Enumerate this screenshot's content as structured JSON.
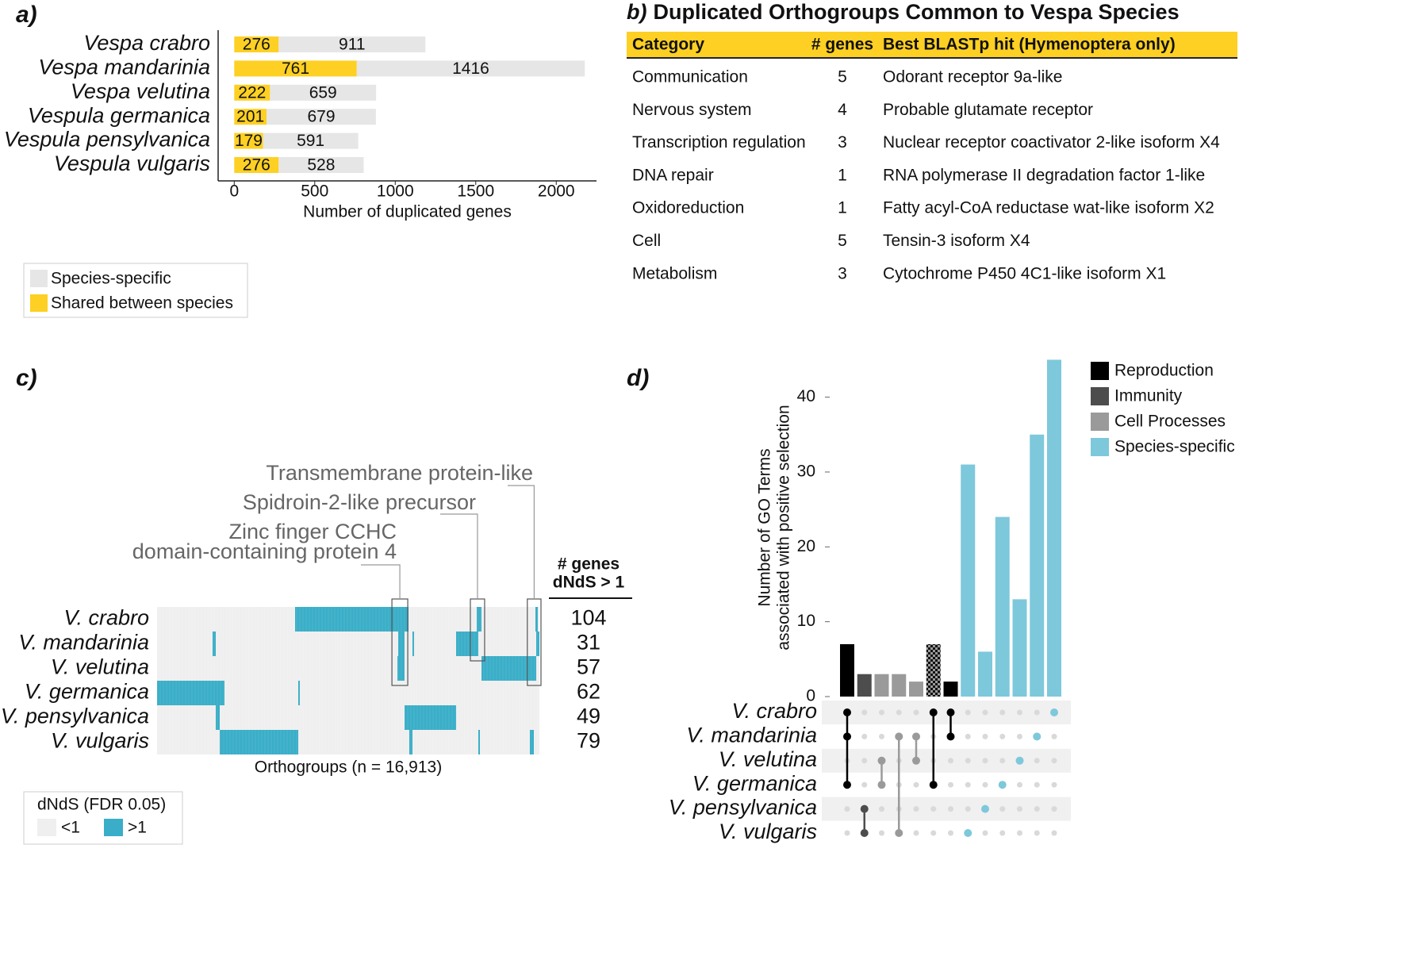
{
  "chart_data": [
    {
      "type": "bar",
      "panel": "a)",
      "orientation": "horizontal",
      "stacked": true,
      "categories": [
        "Vespa crabro",
        "Vespa mandarinia",
        "Vespa velutina",
        "Vespula germanica",
        "Vespula pensylvanica",
        "Vespula vulgaris"
      ],
      "series": [
        {
          "name": "Shared between species",
          "color": "#fdd023",
          "values": [
            276,
            761,
            222,
            201,
            179,
            276
          ]
        },
        {
          "name": "Species-specific",
          "color": "#e6e6e6",
          "values": [
            911,
            1416,
            659,
            679,
            591,
            528
          ]
        }
      ],
      "xlabel": "Number of duplicated genes",
      "xlim": [
        -100,
        2250
      ],
      "xticks": [
        0,
        500,
        1000,
        1500,
        2000
      ]
    },
    {
      "type": "heatmap",
      "panel": "c)",
      "rows": [
        "V. crabro",
        "V. mandarinia",
        "V. velutina",
        "V. germanica",
        "V. pensylvanica",
        "V. vulgaris"
      ],
      "xlabel": "Orthogroups (n = 16,913)",
      "xlim": [
        0,
        16913
      ],
      "segments": [
        [
          [
            6106,
            11123
          ],
          [
            14141,
            14352
          ],
          [
            16738,
            16843
          ]
        ],
        [
          [
            2456,
            2597
          ],
          [
            10667,
            10948
          ],
          [
            11299,
            11369
          ],
          [
            13229,
            14211
          ],
          [
            16773,
            16913
          ]
        ],
        [
          [
            10632,
            10948
          ],
          [
            14352,
            16773
          ]
        ],
        [
          [
            0,
            2983
          ],
          [
            6246,
            6316
          ]
        ],
        [
          [
            2597,
            2772
          ],
          [
            10948,
            13229
          ]
        ],
        [
          [
            2772,
            6246
          ],
          [
            11158,
            11299
          ],
          [
            14211,
            14281
          ],
          [
            16492,
            16667
          ]
        ]
      ],
      "count_header": [
        "# genes",
        "dNdS > 1"
      ],
      "counts": [
        104,
        31,
        57,
        62,
        49,
        79
      ],
      "legend_title": "dNdS (FDR 0.05)",
      "legend": [
        {
          "name": "<1",
          "color": "#efefef"
        },
        {
          "name": ">1",
          "color": "#3aaec8"
        }
      ],
      "annotations": [
        {
          "lines": [
            "Zinc finger CCHC",
            "domain-containing protein 4"
          ],
          "range": [
            10530,
            11020
          ],
          "rows": [
            0,
            2
          ]
        },
        {
          "lines": [
            "Spidroin-2-like precursor"
          ],
          "range": [
            14000,
            14420
          ],
          "rows": [
            0,
            1
          ]
        },
        {
          "lines": [
            "Transmembrane protein-like"
          ],
          "range": [
            16520,
            16913
          ],
          "rows": [
            0,
            2
          ]
        }
      ]
    },
    {
      "type": "upset",
      "panel": "d)",
      "ylabel": [
        "Number of GO Terms",
        "associated with positive selection"
      ],
      "ylim": [
        0,
        46
      ],
      "yticks": [
        0,
        10,
        20,
        30,
        40
      ],
      "sets": [
        "V. crabro",
        "V. mandarinia",
        "V. velutina",
        "V. germanica",
        "V. pensylvanica",
        "V. vulgaris"
      ],
      "legend": [
        {
          "name": "Reproduction",
          "color": "#000000"
        },
        {
          "name": "Immunity",
          "color": "#4d4d4d"
        },
        {
          "name": "Cell Processes",
          "color": "#9a9a9a"
        },
        {
          "name": "Species-specific",
          "color": "#7ec8db"
        }
      ],
      "values": [
        7,
        3,
        3,
        3,
        2,
        7,
        2,
        31,
        6,
        24,
        13,
        35,
        45
      ],
      "colors": [
        "#000000",
        "#4d4d4d",
        "#9a9a9a",
        "#9a9a9a",
        "#9a9a9a",
        "#000000",
        "#000000",
        "#7ec8db",
        "#7ec8db",
        "#7ec8db",
        "#7ec8db",
        "#7ec8db",
        "#7ec8db"
      ],
      "hatched": [
        false,
        false,
        false,
        false,
        false,
        true,
        false,
        false,
        false,
        false,
        false,
        false,
        false
      ],
      "bar_sets": [
        [
          0,
          1,
          3
        ],
        [
          4,
          5
        ],
        [
          2,
          3
        ],
        [
          1,
          5
        ],
        [
          1,
          2
        ],
        [
          0,
          3
        ],
        [
          0,
          1
        ],
        [
          5
        ],
        [
          4
        ],
        [
          3
        ],
        [
          2
        ],
        [
          1
        ],
        [
          0
        ]
      ]
    }
  ],
  "table": {
    "panel": "b)",
    "title": "Duplicated Orthogroups Common to Vespa Species",
    "header": [
      "Category",
      "# genes",
      "Best BLASTp hit (Hymenoptera only)"
    ],
    "rows": [
      [
        "Communication",
        5,
        "Odorant receptor 9a-like"
      ],
      [
        "Nervous system",
        4,
        "Probable glutamate receptor"
      ],
      [
        "Transcription regulation",
        3,
        "Nuclear receptor coactivator 2-like isoform X4"
      ],
      [
        "DNA repair",
        1,
        "RNA polymerase II degradation factor 1-like"
      ],
      [
        "Oxidoreduction",
        1,
        "Fatty acyl-CoA reductase wat-like isoform X2"
      ],
      [
        "Cell",
        5,
        "Tensin-3 isoform X4"
      ],
      [
        "Metabolism",
        3,
        "Cytochrome P450 4C1-like isoform X1"
      ]
    ]
  }
}
